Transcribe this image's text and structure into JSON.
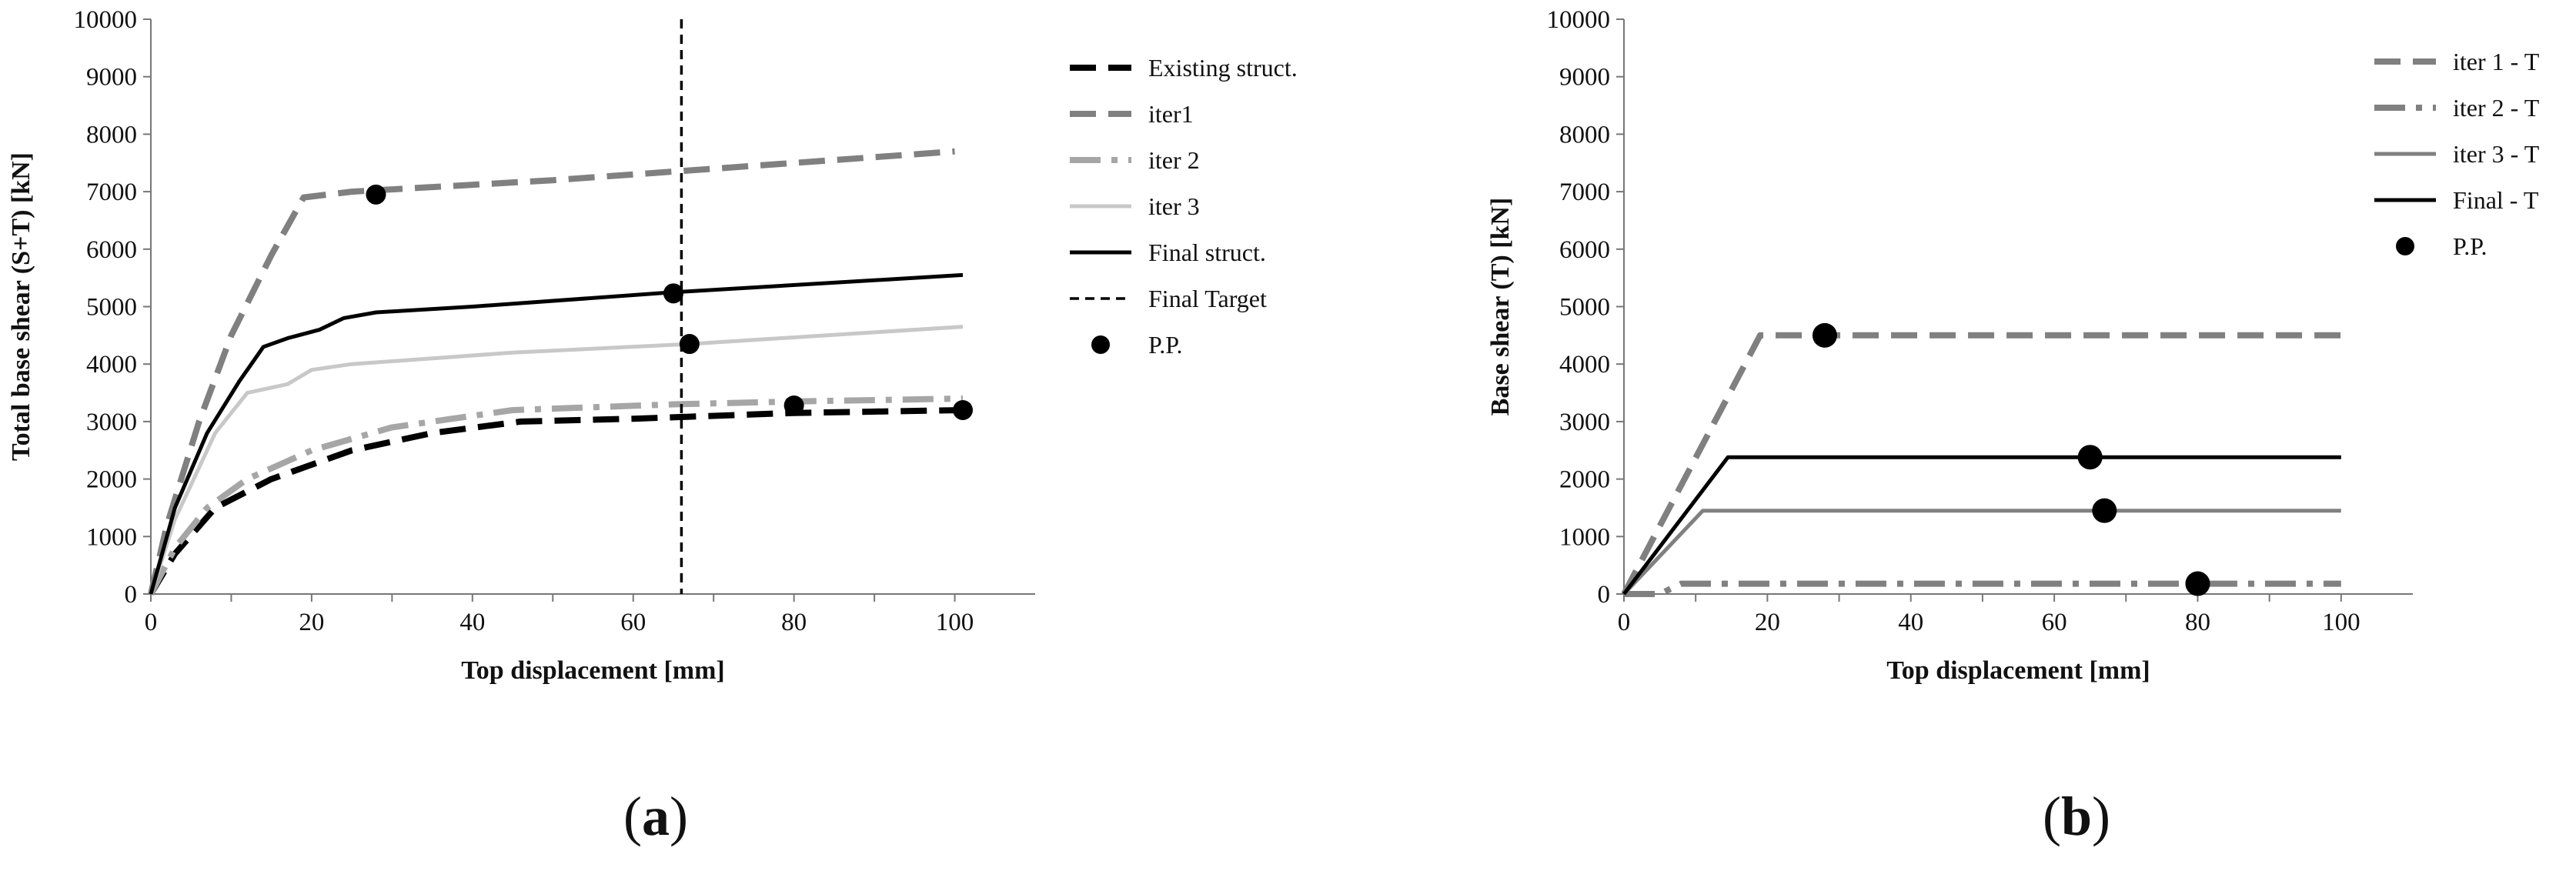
{
  "chart_data": [
    {
      "id": "a",
      "type": "line",
      "caption": {
        "open": "(",
        "letter": "a",
        "close": ")"
      },
      "xlabel": "Top displacement [mm]",
      "ylabel": "Total base shear (S+T) [kN]",
      "xlim": [
        0,
        110
      ],
      "ylim": [
        0,
        10000
      ],
      "xticks": [
        0,
        20,
        40,
        60,
        80,
        100
      ],
      "yticks": [
        0,
        1000,
        2000,
        3000,
        4000,
        5000,
        6000,
        7000,
        8000,
        9000,
        10000
      ],
      "grid": false,
      "legend_position": "right",
      "series": [
        {
          "name": "Existing struct.",
          "color": "#000000",
          "style": "dash-bold",
          "points": [
            [
              0,
              0
            ],
            [
              3,
              700
            ],
            [
              8,
              1500
            ],
            [
              15,
              2000
            ],
            [
              25,
              2500
            ],
            [
              35,
              2800
            ],
            [
              46,
              3000
            ],
            [
              60,
              3050
            ],
            [
              80,
              3150
            ],
            [
              101,
              3200
            ]
          ]
        },
        {
          "name": "iter1",
          "color": "#808080",
          "style": "dash-bold",
          "points": [
            [
              0,
              0
            ],
            [
              2,
              1200
            ],
            [
              6,
              3000
            ],
            [
              10,
              4500
            ],
            [
              15,
              5900
            ],
            [
              19,
              6900
            ],
            [
              25,
              7000
            ],
            [
              50,
              7200
            ],
            [
              75,
              7450
            ],
            [
              100,
              7700
            ]
          ]
        },
        {
          "name": "iter 2",
          "color": "#a6a6a6",
          "style": "dash-dot-bold",
          "points": [
            [
              0,
              0
            ],
            [
              3,
              800
            ],
            [
              7,
              1500
            ],
            [
              12,
              2000
            ],
            [
              20,
              2500
            ],
            [
              30,
              2900
            ],
            [
              45,
              3200
            ],
            [
              65,
              3300
            ],
            [
              80,
              3350
            ],
            [
              101,
              3400
            ]
          ]
        },
        {
          "name": "iter 3",
          "color": "#c8c8c8",
          "style": "solid",
          "points": [
            [
              0,
              0
            ],
            [
              3,
              1300
            ],
            [
              8,
              2800
            ],
            [
              12,
              3500
            ],
            [
              17,
              3650
            ],
            [
              20,
              3900
            ],
            [
              25,
              4000
            ],
            [
              45,
              4200
            ],
            [
              67,
              4350
            ],
            [
              101,
              4650
            ]
          ]
        },
        {
          "name": "Final struct.",
          "color": "#000000",
          "style": "solid",
          "points": [
            [
              0,
              0
            ],
            [
              3,
              1500
            ],
            [
              7,
              2800
            ],
            [
              11,
              3700
            ],
            [
              14,
              4300
            ],
            [
              17,
              4450
            ],
            [
              21,
              4600
            ],
            [
              24,
              4800
            ],
            [
              28,
              4900
            ],
            [
              40,
              5000
            ],
            [
              65,
              5250
            ],
            [
              101,
              5550
            ]
          ]
        },
        {
          "name": "Final Target",
          "color": "#000000",
          "style": "dash-thin",
          "vertical_x": 66
        }
      ],
      "performance_points": {
        "name": "P.P.",
        "color": "#000000",
        "points": [
          [
            28,
            6950
          ],
          [
            65,
            5230
          ],
          [
            67,
            4350
          ],
          [
            80,
            3280
          ],
          [
            101,
            3200
          ]
        ]
      }
    },
    {
      "id": "b",
      "type": "line",
      "caption": {
        "open": "(",
        "letter": "b",
        "close": ")"
      },
      "xlabel": "Top displacement [mm]",
      "ylabel": "Base shear (T) [kN]",
      "xlim": [
        0,
        110
      ],
      "ylim": [
        0,
        10000
      ],
      "xticks": [
        0,
        20,
        40,
        60,
        80,
        100
      ],
      "yticks": [
        0,
        1000,
        2000,
        3000,
        4000,
        5000,
        6000,
        7000,
        8000,
        9000,
        10000
      ],
      "grid": false,
      "legend_position": "top-right",
      "series": [
        {
          "name": "iter 1 - T",
          "color": "#808080",
          "style": "dash-bold",
          "points": [
            [
              0,
              0
            ],
            [
              19,
              4500
            ],
            [
              100,
              4500
            ]
          ]
        },
        {
          "name": "iter 2 - T",
          "color": "#808080",
          "style": "dash-dot-bold",
          "points": [
            [
              0,
              0
            ],
            [
              5,
              0
            ],
            [
              8,
              180
            ],
            [
              100,
              180
            ]
          ]
        },
        {
          "name": "iter 3 - T",
          "color": "#808080",
          "style": "solid-medium",
          "points": [
            [
              0,
              0
            ],
            [
              11,
              1450
            ],
            [
              100,
              1450
            ]
          ]
        },
        {
          "name": "Final - T",
          "color": "#000000",
          "style": "solid",
          "points": [
            [
              0,
              0
            ],
            [
              14.5,
              2380
            ],
            [
              100,
              2380
            ]
          ]
        }
      ],
      "performance_points": {
        "name": "P.P.",
        "color": "#000000",
        "points": [
          [
            28,
            4500
          ],
          [
            65,
            2380
          ],
          [
            67,
            1450
          ],
          [
            80,
            180
          ]
        ]
      }
    }
  ]
}
